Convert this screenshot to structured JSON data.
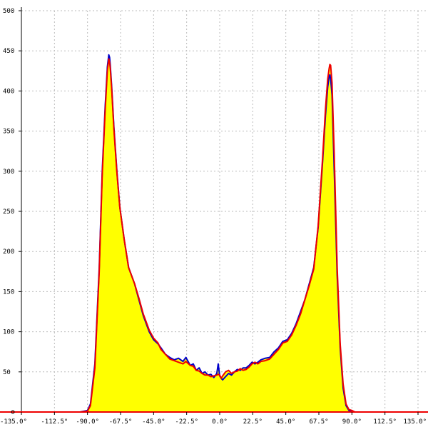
{
  "chart_data": {
    "type": "area",
    "title": "",
    "xlabel": "",
    "ylabel": "",
    "xlim": [
      -135,
      135
    ],
    "ylim": [
      0,
      500
    ],
    "grid": true,
    "x_ticks": [
      -135,
      -112.5,
      -90,
      -67.5,
      -45,
      -22.5,
      0,
      22.5,
      45,
      67.5,
      90,
      112.5,
      135
    ],
    "x_tick_labels": [
      "-135.0°",
      "-112.5°",
      "-90.0°",
      "-67.5°",
      "-45.0°",
      "-22.5°",
      "0.0°",
      "22.5°",
      "45.0°",
      "67.5°",
      "90.0°",
      "112.5°",
      "135.0°"
    ],
    "y_ticks": [
      50,
      100,
      150,
      200,
      250,
      300,
      350,
      400,
      450,
      500
    ],
    "y_tick_labels": [
      "50",
      "100",
      "150",
      "200",
      "250",
      "300",
      "350",
      "400",
      "450",
      "500"
    ],
    "colors": {
      "fill": "#ffff00",
      "series_a": "#0000cc",
      "series_b": "#ee0000",
      "grid": "#bbbbbb",
      "axis": "#000000"
    },
    "series": [
      {
        "color": "#0000cc",
        "x": [
          -135,
          -95,
          -90,
          -88,
          -85,
          -82,
          -80,
          -78,
          -76.5,
          -75.5,
          -75,
          -74.5,
          -73.5,
          -72,
          -70,
          -68,
          -65,
          -62,
          -58,
          -55,
          -52,
          -48,
          -45,
          -42,
          -40,
          -37,
          -34,
          -31,
          -28,
          -25,
          -23,
          -20,
          -18,
          -16,
          -14,
          -12,
          -10,
          -8,
          -6,
          -4,
          -2,
          -1,
          0,
          1,
          2,
          4,
          6,
          8,
          10,
          12,
          14,
          16,
          18,
          20,
          22,
          24,
          26,
          28,
          31,
          34,
          37,
          40,
          43,
          46,
          49,
          52,
          55,
          58,
          61,
          64,
          67,
          70,
          72,
          73.5,
          74.5,
          75,
          75.5,
          76.5,
          78,
          80,
          82,
          84,
          86,
          88,
          90,
          92,
          95,
          135
        ],
        "y": [
          0,
          0,
          2,
          10,
          60,
          180,
          300,
          380,
          430,
          445,
          442,
          432,
          405,
          355,
          300,
          255,
          215,
          180,
          160,
          140,
          120,
          100,
          90,
          85,
          80,
          72,
          68,
          65,
          67,
          63,
          68,
          58,
          60,
          52,
          55,
          48,
          50,
          46,
          47,
          43,
          48,
          60,
          45,
          42,
          40,
          44,
          48,
          46,
          50,
          53,
          52,
          55,
          55,
          58,
          62,
          60,
          62,
          65,
          67,
          68,
          75,
          80,
          88,
          90,
          98,
          110,
          125,
          140,
          160,
          180,
          230,
          310,
          370,
          405,
          418,
          420,
          415,
          395,
          300,
          170,
          80,
          30,
          8,
          2,
          1,
          0,
          0,
          0
        ]
      },
      {
        "color": "#ee0000",
        "x": [
          -135,
          -95,
          -90,
          -88,
          -85,
          -82,
          -80,
          -78,
          -76.5,
          -75.5,
          -75,
          -74.5,
          -73.5,
          -72,
          -70,
          -68,
          -65,
          -62,
          -58,
          -55,
          -52,
          -48,
          -45,
          -42,
          -40,
          -37,
          -34,
          -31,
          -28,
          -25,
          -23,
          -20,
          -18,
          -16,
          -14,
          -12,
          -10,
          -8,
          -6,
          -4,
          -2,
          -1,
          0,
          1,
          2,
          4,
          6,
          8,
          10,
          12,
          14,
          16,
          18,
          20,
          22,
          24,
          26,
          28,
          31,
          34,
          37,
          40,
          43,
          46,
          49,
          52,
          55,
          58,
          61,
          64,
          67,
          70,
          72,
          73.5,
          74.5,
          75,
          75.5,
          76.5,
          78,
          80,
          82,
          84,
          86,
          88,
          90,
          92,
          95,
          135
        ],
        "y": [
          0,
          0,
          1,
          8,
          55,
          175,
          295,
          375,
          425,
          440,
          436,
          428,
          402,
          352,
          298,
          255,
          215,
          180,
          160,
          142,
          122,
          102,
          92,
          86,
          78,
          72,
          66,
          64,
          62,
          60,
          63,
          58,
          57,
          52,
          51,
          48,
          46,
          46,
          44,
          45,
          46,
          47,
          46,
          42,
          45,
          50,
          52,
          48,
          50,
          51,
          54,
          52,
          53,
          56,
          60,
          62,
          60,
          63,
          64,
          66,
          72,
          78,
          86,
          88,
          96,
          108,
          122,
          140,
          158,
          178,
          232,
          315,
          378,
          415,
          428,
          433,
          432,
          410,
          320,
          180,
          85,
          35,
          10,
          3,
          2,
          0,
          0,
          0
        ]
      }
    ]
  }
}
